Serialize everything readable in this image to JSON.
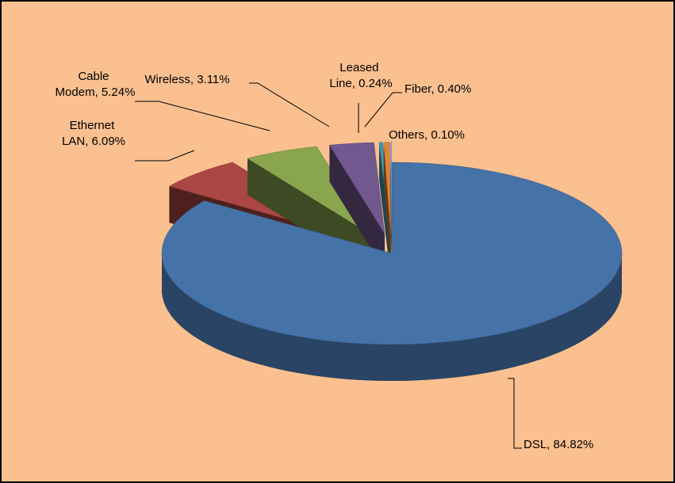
{
  "chart_data": {
    "type": "pie",
    "values": [
      84.82,
      6.09,
      5.24,
      3.11,
      0.24,
      0.4,
      0.1
    ],
    "value_labels": [
      "DSL, 84.82%",
      "Ethernet LAN, 6.09%",
      "Cable Modem, 5.24%",
      "Wireless, 3.11%",
      "Leased Line, 0.24%",
      "Fiber, 0.40%",
      "Others, 0.10%"
    ],
    "colors": [
      "#4572A7",
      "#AA4643",
      "#89A54E",
      "#71588F",
      "#4198AF",
      "#DB843D",
      "#93A9CF"
    ],
    "three_d": true,
    "exploded": true
  }
}
